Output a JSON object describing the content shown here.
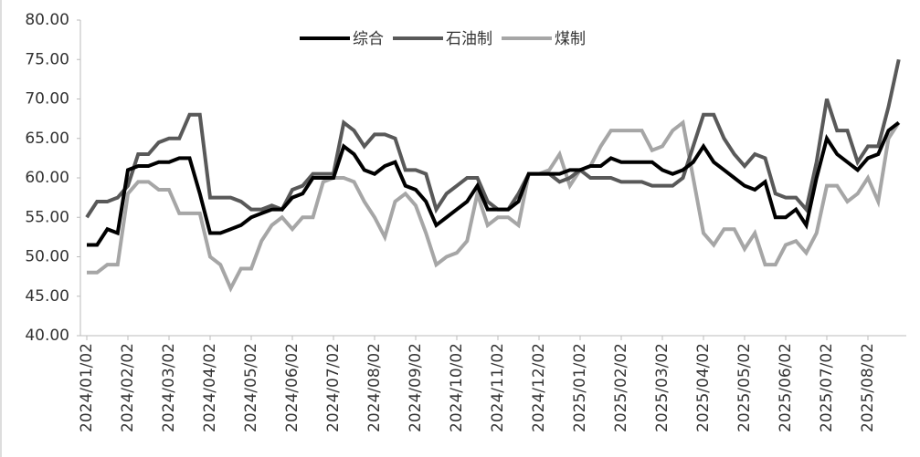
{
  "chart_data": {
    "type": "line",
    "categories": [
      "2024/01/02",
      null,
      null,
      null,
      "2024/02/02",
      null,
      null,
      null,
      "2024/03/02",
      null,
      null,
      null,
      "2024/04/02",
      null,
      null,
      null,
      "2024/05/02",
      null,
      null,
      null,
      "2024/06/02",
      null,
      null,
      null,
      "2024/07/02",
      null,
      null,
      null,
      "2024/08/02",
      null,
      null,
      null,
      "2024/09/02",
      null,
      null,
      null,
      "2024/10/02",
      null,
      null,
      null,
      "2024/11/02",
      null,
      null,
      null,
      "2024/12/02",
      null,
      null,
      null,
      "2025/01/02",
      null,
      null,
      null,
      "2025/02/02",
      null,
      null,
      null,
      "2025/03/02",
      null,
      null,
      null,
      "2025/04/02",
      null,
      null,
      null,
      "2025/05/02",
      null,
      null,
      null,
      "2025/06/02",
      null,
      null,
      null,
      "2025/07/02",
      null,
      null,
      null,
      "2025/08/02",
      null,
      null,
      null
    ],
    "series": [
      {
        "name": "综合",
        "color": "#000000",
        "values": [
          51.5,
          51.5,
          53.5,
          53,
          61,
          61.5,
          61.5,
          62,
          62,
          62.5,
          62.5,
          58,
          53,
          53,
          53.5,
          54,
          55,
          55.5,
          56,
          56,
          57.5,
          58,
          60,
          60,
          60,
          64,
          63,
          61,
          60.5,
          61.5,
          62,
          59,
          58.5,
          57,
          54,
          55,
          56,
          57,
          59,
          56,
          56,
          56,
          57,
          60.5,
          60.5,
          60.5,
          60.5,
          61,
          61,
          61.5,
          61.5,
          62.5,
          62,
          62,
          62,
          62,
          61,
          60.5,
          61,
          62,
          64,
          62,
          61,
          60,
          59,
          58.5,
          59.5,
          55,
          55,
          56,
          54,
          60,
          65,
          63,
          62,
          61,
          62.5,
          63,
          66,
          67
        ]
      },
      {
        "name": "石油制",
        "color": "#595959",
        "values": [
          55,
          57,
          57,
          57.5,
          59,
          63,
          63,
          64.5,
          65,
          65,
          68,
          68,
          57.5,
          57.5,
          57.5,
          57,
          56,
          56,
          56.5,
          56,
          58.5,
          59,
          60.5,
          60.5,
          60.5,
          67,
          66,
          64,
          65.5,
          65.5,
          65,
          61,
          61,
          60.5,
          56,
          58,
          59,
          60,
          60,
          57,
          56,
          56,
          58,
          60.5,
          60.5,
          60.5,
          59.5,
          60,
          61,
          60,
          60,
          60,
          59.5,
          59.5,
          59.5,
          59,
          59,
          59,
          60,
          64,
          68,
          68,
          65,
          63,
          61.5,
          63,
          62.5,
          58,
          57.5,
          57.5,
          56,
          62,
          70,
          66,
          66,
          62,
          64,
          64,
          69,
          75
        ]
      },
      {
        "name": "煤制",
        "color": "#a6a6a6",
        "values": [
          48,
          48,
          49,
          49,
          58,
          59.5,
          59.5,
          58.5,
          58.5,
          55.5,
          55.5,
          55.5,
          50,
          49,
          46,
          48.5,
          48.5,
          52,
          54,
          55,
          53.5,
          55,
          55,
          59.5,
          60,
          60,
          59.5,
          57,
          55,
          52.5,
          57,
          58,
          56.5,
          53,
          49,
          50,
          50.5,
          52,
          58,
          54,
          55,
          55,
          54,
          60.5,
          60.5,
          61,
          63,
          59,
          61,
          61.5,
          64,
          66,
          66,
          66,
          66,
          63.5,
          64,
          66,
          67,
          60,
          53,
          51.5,
          53.5,
          53.5,
          51,
          53,
          49,
          49,
          51.5,
          52,
          50.5,
          53,
          59,
          59,
          57,
          58,
          60,
          57,
          65,
          67
        ]
      }
    ],
    "ylim": [
      40,
      80
    ],
    "yticks": [
      {
        "value": 40,
        "label": "40.00"
      },
      {
        "value": 45,
        "label": "45.00"
      },
      {
        "value": 50,
        "label": "50.00"
      },
      {
        "value": 55,
        "label": "55.00"
      },
      {
        "value": 60,
        "label": "60.00"
      },
      {
        "value": 65,
        "label": "65.00"
      },
      {
        "value": 70,
        "label": "70.00"
      },
      {
        "value": 75,
        "label": "75.00"
      },
      {
        "value": 80,
        "label": "80.00"
      }
    ],
    "legend": "top"
  }
}
